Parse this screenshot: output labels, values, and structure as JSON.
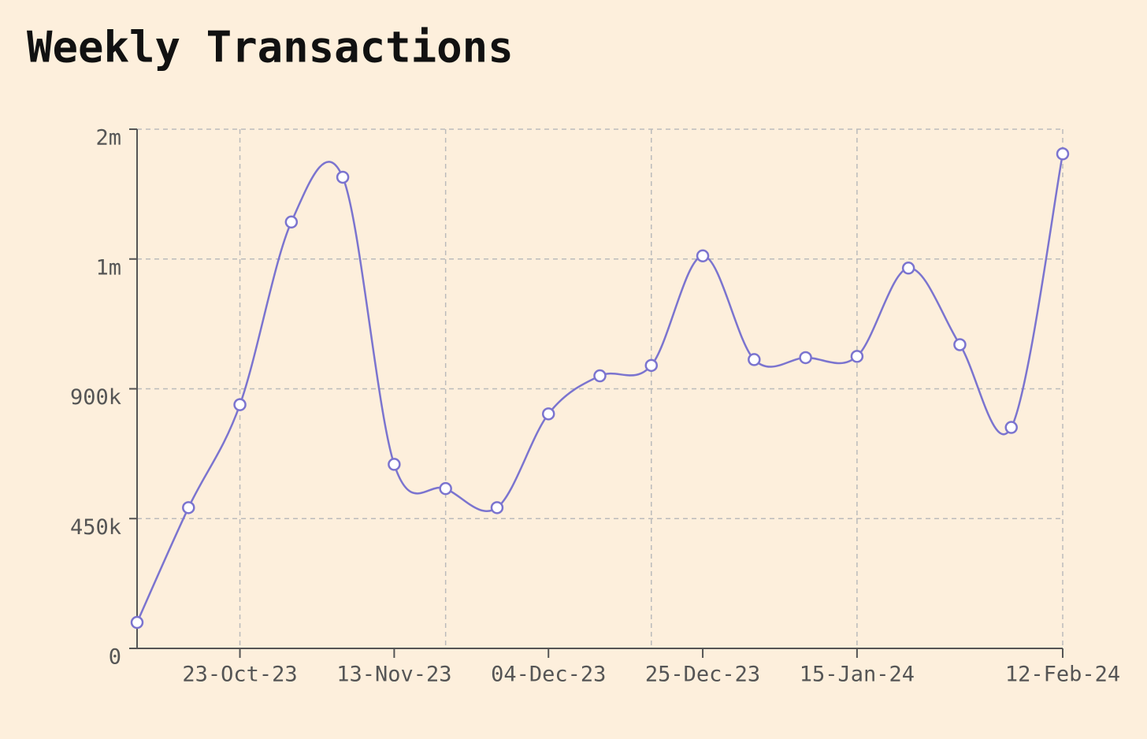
{
  "chart_data": {
    "type": "line",
    "title": "Weekly Transactions",
    "x": [
      "2023-10-09",
      "2023-10-16",
      "2023-10-23",
      "2023-10-30",
      "2023-11-06",
      "2023-11-13",
      "2023-11-20",
      "2023-11-27",
      "2023-12-04",
      "2023-12-11",
      "2023-12-18",
      "2023-12-25",
      "2024-01-01",
      "2024-01-08",
      "2024-01-15",
      "2024-01-22",
      "2024-01-29",
      "2024-02-05",
      "2024-02-12"
    ],
    "series": [
      {
        "name": "Weekly Transactions",
        "color": "#7b74cf",
        "values": [
          90000,
          488000,
          845000,
          1285000,
          1630000,
          638000,
          554000,
          488000,
          813000,
          910000,
          918000,
          1024000,
          922500,
          924000,
          925000,
          993000,
          934000,
          766000,
          1810000
        ]
      }
    ],
    "ylim": [
      0,
      2000000
    ],
    "yticks": [
      0,
      {
        "value": 450000,
        "label": "450k"
      },
      {
        "value": 900000,
        "label": "900k"
      },
      {
        "value": 1000000,
        "label": "1m"
      },
      {
        "value": 2000000,
        "label": "2m"
      }
    ],
    "xticks": [
      {
        "value": "2023-10-23",
        "label": "23-Oct-23"
      },
      {
        "value": "2023-11-13",
        "label": "13-Nov-23"
      },
      {
        "value": "2023-12-04",
        "label": "04-Dec-23"
      },
      {
        "value": "2023-12-25",
        "label": "25-Dec-23"
      },
      {
        "value": "2024-01-15",
        "label": "15-Jan-24"
      },
      {
        "value": "2024-02-12",
        "label": "12-Feb-24"
      }
    ],
    "grid": true
  }
}
